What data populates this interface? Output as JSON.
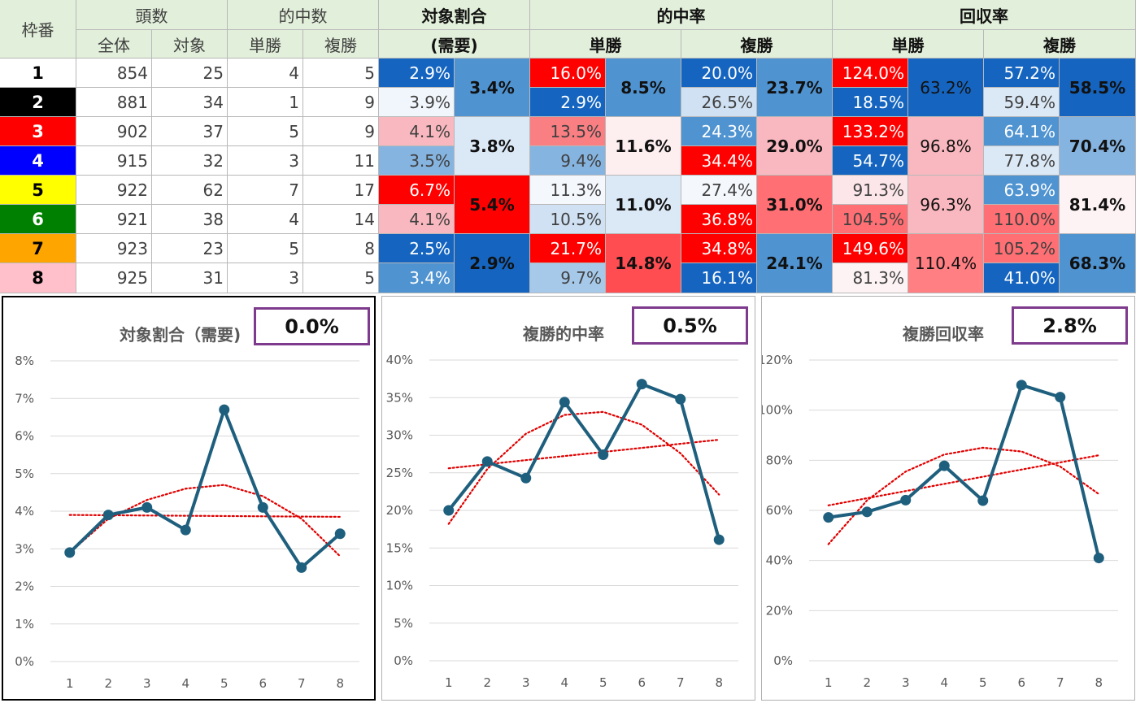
{
  "header": {
    "wakuban": "枠番",
    "tousu": "頭数",
    "zentai": "全体",
    "taisho": "対象",
    "tekichu_su": "的中数",
    "tansho": "単勝",
    "fukusho": "複勝",
    "taisho_wariai": "対象割合",
    "juyo": "(需要)",
    "tekichu_ritsu": "的中率",
    "kaishu_ritsu": "回収率"
  },
  "waku_colors": [
    "#ffffff",
    "#000000",
    "#ff0000",
    "#0000ff",
    "#ffff00",
    "#008000",
    "#ffa500",
    "#ffc0cb"
  ],
  "waku_text_colors": [
    "#000000",
    "#ffffff",
    "#ffffff",
    "#ffffff",
    "#000000",
    "#ffffff",
    "#000000",
    "#000000"
  ],
  "rows": [
    {
      "waku": "1",
      "zentai": "854",
      "taisho": "25",
      "tan_hit": "4",
      "fuku_hit": "5",
      "ratio": "2.9%",
      "tan_rate": "16.0%",
      "fuku_rate": "20.0%",
      "tan_ret": "124.0%",
      "fuku_ret": "57.2%"
    },
    {
      "waku": "2",
      "zentai": "881",
      "taisho": "34",
      "tan_hit": "1",
      "fuku_hit": "9",
      "ratio": "3.9%",
      "tan_rate": "2.9%",
      "fuku_rate": "26.5%",
      "tan_ret": "18.5%",
      "fuku_ret": "59.4%"
    },
    {
      "waku": "3",
      "zentai": "902",
      "taisho": "37",
      "tan_hit": "5",
      "fuku_hit": "9",
      "ratio": "4.1%",
      "tan_rate": "13.5%",
      "fuku_rate": "24.3%",
      "tan_ret": "133.2%",
      "fuku_ret": "64.1%"
    },
    {
      "waku": "4",
      "zentai": "915",
      "taisho": "32",
      "tan_hit": "3",
      "fuku_hit": "11",
      "ratio": "3.5%",
      "tan_rate": "9.4%",
      "fuku_rate": "34.4%",
      "tan_ret": "54.7%",
      "fuku_ret": "77.8%"
    },
    {
      "waku": "5",
      "zentai": "922",
      "taisho": "62",
      "tan_hit": "7",
      "fuku_hit": "17",
      "ratio": "6.7%",
      "tan_rate": "11.3%",
      "fuku_rate": "27.4%",
      "tan_ret": "91.3%",
      "fuku_ret": "63.9%"
    },
    {
      "waku": "6",
      "zentai": "921",
      "taisho": "38",
      "tan_hit": "4",
      "fuku_hit": "14",
      "ratio": "4.1%",
      "tan_rate": "10.5%",
      "fuku_rate": "36.8%",
      "tan_ret": "104.5%",
      "fuku_ret": "110.0%"
    },
    {
      "waku": "7",
      "zentai": "923",
      "taisho": "23",
      "tan_hit": "5",
      "fuku_hit": "8",
      "ratio": "2.5%",
      "tan_rate": "21.7%",
      "fuku_rate": "34.8%",
      "tan_ret": "149.6%",
      "fuku_ret": "105.2%"
    },
    {
      "waku": "8",
      "zentai": "925",
      "taisho": "31",
      "tan_hit": "3",
      "fuku_hit": "5",
      "ratio": "3.4%",
      "tan_rate": "9.7%",
      "fuku_rate": "16.1%",
      "tan_ret": "81.3%",
      "fuku_ret": "41.0%"
    }
  ],
  "cell_colors": {
    "ratio": [
      "#1565c0",
      "#f1f6fc",
      "#f9b8bf",
      "#86b4e0",
      "#ff0000",
      "#f9b8bf",
      "#1565c0",
      "#4f93d1"
    ],
    "tan_rate": [
      "#ff0000",
      "#1565c0",
      "#fa7f83",
      "#86b4e0",
      "#f4f8fd",
      "#cfe1f3",
      "#ff0000",
      "#a6c9ea"
    ],
    "fuku_rate": [
      "#1565c0",
      "#cfe1f3",
      "#4f93d1",
      "#ff0000",
      "#f4f8fd",
      "#ff0000",
      "#ff0000",
      "#1565c0"
    ],
    "tan_ret": [
      "#ff0000",
      "#1565c0",
      "#ff0000",
      "#1565c0",
      "#fde6e9",
      "#ff6f73",
      "#ff0000",
      "#fdf3f4"
    ],
    "fuku_ret": [
      "#1565c0",
      "#dbe8f6",
      "#4f93d1",
      "#dbe8f6",
      "#4f93d1",
      "#ff6f73",
      "#ff6f73",
      "#1565c0"
    ]
  },
  "cell_text_colors": {
    "ratio": [
      "#ffffff",
      "#404040",
      "#404040",
      "#404040",
      "#ffffff",
      "#404040",
      "#ffffff",
      "#ffffff"
    ],
    "tan_rate": [
      "#ffffff",
      "#ffffff",
      "#404040",
      "#404040",
      "#404040",
      "#404040",
      "#ffffff",
      "#404040"
    ],
    "fuku_rate": [
      "#ffffff",
      "#404040",
      "#ffffff",
      "#ffffff",
      "#404040",
      "#ffffff",
      "#ffffff",
      "#ffffff"
    ],
    "tan_ret": [
      "#ffffff",
      "#ffffff",
      "#ffffff",
      "#ffffff",
      "#404040",
      "#404040",
      "#ffffff",
      "#404040"
    ],
    "fuku_ret": [
      "#ffffff",
      "#404040",
      "#ffffff",
      "#404040",
      "#ffffff",
      "#404040",
      "#404040",
      "#ffffff"
    ]
  },
  "agg": {
    "ratio": [
      {
        "v": "3.4%",
        "bg": "#4f93d1",
        "b": true
      },
      {
        "v": "3.8%",
        "bg": "#dbe8f6",
        "b": true
      },
      {
        "v": "5.4%",
        "bg": "#ff0000",
        "b": true
      },
      {
        "v": "2.9%",
        "bg": "#1565c0",
        "b": true
      }
    ],
    "tan_rate": [
      {
        "v": "8.5%",
        "bg": "#4f93d1",
        "b": true
      },
      {
        "v": "11.6%",
        "bg": "#fdeef0",
        "b": true
      },
      {
        "v": "11.0%",
        "bg": "#dbe8f6",
        "b": true
      },
      {
        "v": "14.8%",
        "bg": "#ff4d52",
        "b": true
      }
    ],
    "fuku_rate": [
      {
        "v": "23.7%",
        "bg": "#4f93d1",
        "b": true
      },
      {
        "v": "29.0%",
        "bg": "#f9b8bf",
        "b": true
      },
      {
        "v": "31.0%",
        "bg": "#ff6f73",
        "b": true
      },
      {
        "v": "24.1%",
        "bg": "#4f93d1",
        "b": true
      }
    ],
    "tan_ret": [
      {
        "v": "63.2%",
        "bg": "#1565c0",
        "b": false
      },
      {
        "v": "96.8%",
        "bg": "#f9b8bf",
        "b": false
      },
      {
        "v": "96.3%",
        "bg": "#f9b8bf",
        "b": false
      },
      {
        "v": "110.4%",
        "bg": "#ff7f83",
        "b": false
      }
    ],
    "fuku_ret": [
      {
        "v": "58.5%",
        "bg": "#1565c0",
        "b": true
      },
      {
        "v": "70.4%",
        "bg": "#86b4e0",
        "b": true
      },
      {
        "v": "81.4%",
        "bg": "#fdf3f4",
        "b": true
      },
      {
        "v": "68.3%",
        "bg": "#4f93d1",
        "b": true
      }
    ]
  },
  "chart_data": [
    {
      "type": "line",
      "title": "対象割合（需要)",
      "badge": "0.0%",
      "x": [
        "1",
        "2",
        "3",
        "4",
        "5",
        "6",
        "7",
        "8"
      ],
      "values": [
        2.9,
        3.9,
        4.1,
        3.5,
        6.7,
        4.1,
        2.5,
        3.4
      ],
      "ylim": [
        0,
        8
      ],
      "yticks": [
        0,
        1,
        2,
        3,
        4,
        5,
        6,
        7,
        8
      ],
      "ytick_labels": [
        "0%",
        "1%",
        "2%",
        "3%",
        "4%",
        "5%",
        "6%",
        "7%",
        "8%"
      ],
      "trend_linear": [
        3.9,
        3.85
      ],
      "trend_poly": [
        2.9,
        3.8,
        4.3,
        4.6,
        4.7,
        4.4,
        3.8,
        2.8
      ],
      "line_color": "#1f5f7e",
      "trend_color": "#e00000",
      "grid": true
    },
    {
      "type": "line",
      "title": "複勝的中率",
      "badge": "0.5%",
      "x": [
        "1",
        "2",
        "3",
        "4",
        "5",
        "6",
        "7",
        "8"
      ],
      "values": [
        20.0,
        26.5,
        24.3,
        34.4,
        27.4,
        36.8,
        34.8,
        16.1
      ],
      "ylim": [
        0,
        40
      ],
      "yticks": [
        0,
        5,
        10,
        15,
        20,
        25,
        30,
        35,
        40
      ],
      "ytick_labels": [
        "0%",
        "5%",
        "10%",
        "15%",
        "20%",
        "25%",
        "30%",
        "35%",
        "40%"
      ],
      "trend_linear": [
        25.6,
        29.4
      ],
      "trend_poly": [
        18.2,
        25.5,
        30.2,
        32.7,
        33.1,
        31.4,
        27.6,
        22.1
      ],
      "line_color": "#1f5f7e",
      "trend_color": "#e00000",
      "grid": true
    },
    {
      "type": "line",
      "title": "複勝回収率",
      "badge": "2.8%",
      "x": [
        "1",
        "2",
        "3",
        "4",
        "5",
        "6",
        "7",
        "8"
      ],
      "values": [
        57.2,
        59.4,
        64.1,
        77.8,
        63.9,
        110.0,
        105.2,
        41.0
      ],
      "ylim": [
        0,
        120
      ],
      "yticks": [
        0,
        20,
        40,
        60,
        80,
        100,
        120
      ],
      "ytick_labels": [
        "0%",
        "20%",
        "40%",
        "60%",
        "80%",
        "100%",
        "120%"
      ],
      "trend_linear": [
        62.0,
        82.0
      ],
      "trend_poly": [
        46.5,
        64.0,
        75.5,
        82.3,
        85.0,
        83.5,
        77.5,
        66.5
      ],
      "line_color": "#1f5f7e",
      "trend_color": "#e00000",
      "grid": true
    }
  ]
}
